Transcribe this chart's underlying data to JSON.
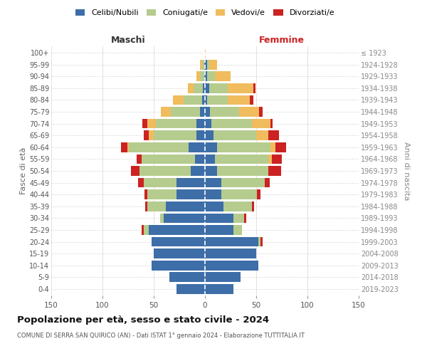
{
  "age_groups": [
    "0-4",
    "5-9",
    "10-14",
    "15-19",
    "20-24",
    "25-29",
    "30-34",
    "35-39",
    "40-44",
    "45-49",
    "50-54",
    "55-59",
    "60-64",
    "65-69",
    "70-74",
    "75-79",
    "80-84",
    "85-89",
    "90-94",
    "95-99",
    "100+"
  ],
  "birth_years": [
    "2019-2023",
    "2014-2018",
    "2009-2013",
    "2004-2008",
    "1999-2003",
    "1994-1998",
    "1989-1993",
    "1984-1988",
    "1979-1983",
    "1974-1978",
    "1969-1973",
    "1964-1968",
    "1959-1963",
    "1954-1958",
    "1949-1953",
    "1944-1948",
    "1939-1943",
    "1934-1938",
    "1929-1933",
    "1924-1928",
    "≤ 1923"
  ],
  "maschi": {
    "celibi": [
      28,
      35,
      52,
      50,
      52,
      55,
      40,
      38,
      28,
      28,
      14,
      10,
      16,
      8,
      8,
      5,
      3,
      2,
      1,
      1,
      0
    ],
    "coniugati": [
      0,
      0,
      0,
      0,
      0,
      5,
      4,
      18,
      28,
      32,
      50,
      52,
      58,
      42,
      40,
      28,
      18,
      9,
      4,
      2,
      0
    ],
    "vedovi": [
      0,
      0,
      0,
      0,
      0,
      0,
      0,
      0,
      0,
      0,
      0,
      0,
      2,
      5,
      8,
      10,
      10,
      6,
      3,
      2,
      0
    ],
    "divorziati": [
      0,
      0,
      0,
      0,
      0,
      2,
      0,
      2,
      3,
      5,
      8,
      5,
      6,
      5,
      5,
      0,
      0,
      0,
      0,
      0,
      0
    ]
  },
  "femmine": {
    "nubili": [
      28,
      35,
      52,
      50,
      52,
      28,
      28,
      18,
      16,
      16,
      12,
      10,
      12,
      8,
      6,
      5,
      2,
      4,
      2,
      2,
      0
    ],
    "coniugate": [
      0,
      0,
      0,
      0,
      2,
      8,
      10,
      28,
      35,
      42,
      50,
      52,
      52,
      42,
      40,
      28,
      20,
      18,
      8,
      2,
      0
    ],
    "vedove": [
      0,
      0,
      0,
      0,
      0,
      0,
      0,
      0,
      0,
      0,
      0,
      3,
      5,
      12,
      18,
      20,
      22,
      25,
      15,
      8,
      1
    ],
    "divorziate": [
      0,
      0,
      0,
      0,
      2,
      0,
      2,
      2,
      3,
      5,
      12,
      10,
      10,
      10,
      2,
      3,
      3,
      2,
      0,
      0,
      0
    ]
  },
  "colors": {
    "celibi_nubili": "#3d6ea8",
    "coniugati": "#b5cc8e",
    "vedovi": "#f0bc5e",
    "divorziati": "#cc2222"
  },
  "title": "Popolazione per età, sesso e stato civile - 2024",
  "subtitle": "COMUNE DI SERRA SAN QUIRICO (AN) - Dati ISTAT 1° gennaio 2024 - Elaborazione TUTTITALIA.IT",
  "xlabel_left": "Maschi",
  "xlabel_right": "Femmine",
  "ylabel_left": "Fasce di età",
  "ylabel_right": "Anni di nascita",
  "xlim": 150,
  "legend_labels": [
    "Celibi/Nubili",
    "Coniugati/e",
    "Vedovi/e",
    "Divorziati/e"
  ],
  "background_color": "#ffffff",
  "grid_color": "#cccccc"
}
